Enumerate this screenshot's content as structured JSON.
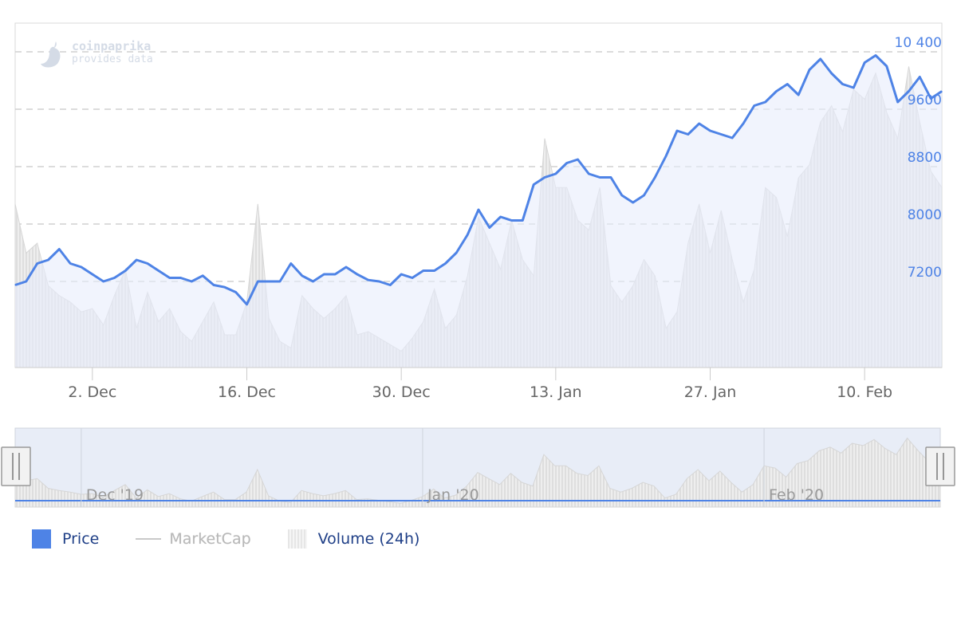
{
  "brand": {
    "line1": "coinpaprika",
    "line2": "provides data"
  },
  "colors": {
    "price": "#4e83e6",
    "price_fill": "#e7edfb",
    "volume": "#d9d9d9",
    "navigator_fill": "#e8edf7",
    "grid": "#d0d0d0",
    "axis_label": "#666666",
    "y_label": "#4e83e6"
  },
  "legend": [
    {
      "id": "price",
      "label": "Price",
      "enabled": true
    },
    {
      "id": "marketcap",
      "label": "MarketCap",
      "enabled": false
    },
    {
      "id": "volume",
      "label": "Volume (24h)",
      "enabled": true
    }
  ],
  "chart_data": {
    "type": "line",
    "title": "",
    "xlabel": "",
    "ylabel": "",
    "x_range": [
      "2019-11-25",
      "2020-02-17"
    ],
    "ylim": [
      6000,
      10800
    ],
    "y_ticks": [
      7200,
      8000,
      8800,
      9600,
      10400
    ],
    "y_tick_labels": [
      "7200",
      "8000",
      "8800",
      "9600",
      "10 400"
    ],
    "x_ticks": [
      "2019-12-02",
      "2019-12-16",
      "2019-12-30",
      "2020-01-13",
      "2020-01-27",
      "2020-02-10"
    ],
    "x_tick_labels": [
      "2. Dec",
      "16. Dec",
      "30. Dec",
      "13. Jan",
      "27. Jan",
      "10. Feb"
    ],
    "grid": true,
    "legend_position": "bottom-left",
    "navigator": {
      "labels": [
        "Dec '19",
        "Jan '20",
        "Feb '20"
      ],
      "label_dates": [
        "2019-12-01",
        "2020-01-01",
        "2020-02-01"
      ]
    },
    "series": [
      {
        "name": "Price",
        "type": "line",
        "x": [
          "2019-11-25",
          "2019-11-26",
          "2019-11-27",
          "2019-11-28",
          "2019-11-29",
          "2019-11-30",
          "2019-12-01",
          "2019-12-02",
          "2019-12-03",
          "2019-12-04",
          "2019-12-05",
          "2019-12-06",
          "2019-12-07",
          "2019-12-08",
          "2019-12-09",
          "2019-12-10",
          "2019-12-11",
          "2019-12-12",
          "2019-12-13",
          "2019-12-14",
          "2019-12-15",
          "2019-12-16",
          "2019-12-17",
          "2019-12-18",
          "2019-12-19",
          "2019-12-20",
          "2019-12-21",
          "2019-12-22",
          "2019-12-23",
          "2019-12-24",
          "2019-12-25",
          "2019-12-26",
          "2019-12-27",
          "2019-12-28",
          "2019-12-29",
          "2019-12-30",
          "2019-12-31",
          "2020-01-01",
          "2020-01-02",
          "2020-01-03",
          "2020-01-04",
          "2020-01-05",
          "2020-01-06",
          "2020-01-07",
          "2020-01-08",
          "2020-01-09",
          "2020-01-10",
          "2020-01-11",
          "2020-01-12",
          "2020-01-13",
          "2020-01-14",
          "2020-01-15",
          "2020-01-16",
          "2020-01-17",
          "2020-01-18",
          "2020-01-19",
          "2020-01-20",
          "2020-01-21",
          "2020-01-22",
          "2020-01-23",
          "2020-01-24",
          "2020-01-25",
          "2020-01-26",
          "2020-01-27",
          "2020-01-28",
          "2020-01-29",
          "2020-01-30",
          "2020-01-31",
          "2020-02-01",
          "2020-02-02",
          "2020-02-03",
          "2020-02-04",
          "2020-02-05",
          "2020-02-06",
          "2020-02-07",
          "2020-02-08",
          "2020-02-09",
          "2020-02-10",
          "2020-02-11",
          "2020-02-12",
          "2020-02-13",
          "2020-02-14",
          "2020-02-15",
          "2020-02-16",
          "2020-02-17"
        ],
        "values": [
          7150,
          7200,
          7450,
          7500,
          7650,
          7450,
          7400,
          7300,
          7200,
          7250,
          7350,
          7500,
          7450,
          7350,
          7250,
          7250,
          7200,
          7280,
          7150,
          7120,
          7050,
          6880,
          7200,
          7200,
          7200,
          7450,
          7280,
          7200,
          7300,
          7300,
          7400,
          7300,
          7220,
          7200,
          7150,
          7300,
          7250,
          7350,
          7350,
          7450,
          7600,
          7850,
          8200,
          7950,
          8100,
          8050,
          8050,
          8550,
          8650,
          8700,
          8850,
          8900,
          8700,
          8650,
          8650,
          8400,
          8300,
          8400,
          8650,
          8950,
          9300,
          9250,
          9400,
          9300,
          9250,
          9200,
          9400,
          9650,
          9700,
          9850,
          9950,
          9800,
          10150,
          10300,
          10100,
          9950,
          9900,
          10250,
          10350,
          10200,
          9700,
          9850,
          10050,
          9750,
          9850
        ]
      },
      {
        "name": "Volume (24h)",
        "type": "area",
        "x": [
          "2019-11-25",
          "2019-11-26",
          "2019-11-27",
          "2019-11-28",
          "2019-11-29",
          "2019-11-30",
          "2019-12-01",
          "2019-12-02",
          "2019-12-03",
          "2019-12-04",
          "2019-12-05",
          "2019-12-06",
          "2019-12-07",
          "2019-12-08",
          "2019-12-09",
          "2019-12-10",
          "2019-12-11",
          "2019-12-12",
          "2019-12-13",
          "2019-12-14",
          "2019-12-15",
          "2019-12-16",
          "2019-12-17",
          "2019-12-18",
          "2019-12-19",
          "2019-12-20",
          "2019-12-21",
          "2019-12-22",
          "2019-12-23",
          "2019-12-24",
          "2019-12-25",
          "2019-12-26",
          "2019-12-27",
          "2019-12-28",
          "2019-12-29",
          "2019-12-30",
          "2019-12-31",
          "2020-01-01",
          "2020-01-02",
          "2020-01-03",
          "2020-01-04",
          "2020-01-05",
          "2020-01-06",
          "2020-01-07",
          "2020-01-08",
          "2020-01-09",
          "2020-01-10",
          "2020-01-11",
          "2020-01-12",
          "2020-01-13",
          "2020-01-14",
          "2020-01-15",
          "2020-01-16",
          "2020-01-17",
          "2020-01-18",
          "2020-01-19",
          "2020-01-20",
          "2020-01-21",
          "2020-01-22",
          "2020-01-23",
          "2020-01-24",
          "2020-01-25",
          "2020-01-26",
          "2020-01-27",
          "2020-01-28",
          "2020-01-29",
          "2020-01-30",
          "2020-01-31",
          "2020-02-01",
          "2020-02-02",
          "2020-02-03",
          "2020-02-04",
          "2020-02-05",
          "2020-02-06",
          "2020-02-07",
          "2020-02-08",
          "2020-02-09",
          "2020-02-10",
          "2020-02-11",
          "2020-02-12",
          "2020-02-13",
          "2020-02-14",
          "2020-02-15",
          "2020-02-16",
          "2020-02-17"
        ],
        "values": [
          0.5,
          0.35,
          0.38,
          0.25,
          0.22,
          0.2,
          0.17,
          0.18,
          0.13,
          0.22,
          0.3,
          0.12,
          0.23,
          0.14,
          0.18,
          0.11,
          0.08,
          0.14,
          0.2,
          0.1,
          0.1,
          0.2,
          0.5,
          0.15,
          0.08,
          0.06,
          0.22,
          0.18,
          0.15,
          0.18,
          0.22,
          0.1,
          0.11,
          0.09,
          0.07,
          0.05,
          0.09,
          0.14,
          0.24,
          0.12,
          0.16,
          0.28,
          0.46,
          0.38,
          0.3,
          0.45,
          0.33,
          0.28,
          0.7,
          0.55,
          0.55,
          0.45,
          0.42,
          0.55,
          0.25,
          0.2,
          0.25,
          0.33,
          0.28,
          0.12,
          0.17,
          0.38,
          0.5,
          0.35,
          0.48,
          0.33,
          0.2,
          0.3,
          0.55,
          0.52,
          0.4,
          0.58,
          0.62,
          0.75,
          0.8,
          0.72,
          0.85,
          0.82,
          0.9,
          0.78,
          0.7,
          0.92,
          0.75,
          0.6,
          0.55
        ]
      }
    ]
  }
}
